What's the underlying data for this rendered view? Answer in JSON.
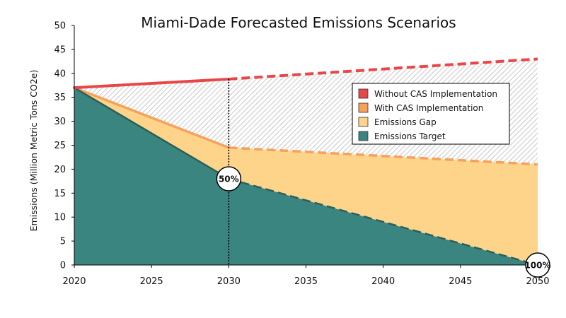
{
  "chart_data": {
    "type": "area",
    "title": "Miami-Dade Forecasted Emissions Scenarios",
    "xlabel": "",
    "ylabel": "Emissions (Million Metric Tons CO2e)",
    "xlim": [
      2020,
      2050
    ],
    "ylim": [
      0,
      50
    ],
    "x_ticks": [
      "2020",
      "2025",
      "2030",
      "2035",
      "2040",
      "2045",
      "2050"
    ],
    "y_ticks": [
      "0",
      "5",
      "10",
      "15",
      "20",
      "25",
      "30",
      "35",
      "40",
      "45",
      "50"
    ],
    "grid": false,
    "legend_position": "top-right",
    "series": [
      {
        "name": "Without CAS Implementation",
        "color": "#e8474a",
        "points": [
          [
            2020,
            37
          ],
          [
            2030,
            38.8
          ],
          [
            2050,
            43
          ]
        ],
        "solid_until": 2030
      },
      {
        "name": "With CAS Implementation",
        "color": "#f7a15a",
        "points": [
          [
            2020,
            37
          ],
          [
            2030,
            24.5
          ],
          [
            2050,
            21
          ]
        ],
        "solid_until": 2030
      },
      {
        "name": "Emissions Gap",
        "color": "#fdd48a",
        "fill": true
      },
      {
        "name": "Emissions Target",
        "color": "#3a8580",
        "points": [
          [
            2020,
            37
          ],
          [
            2030,
            18
          ],
          [
            2050,
            0
          ]
        ],
        "solid_until": 2030
      }
    ],
    "annotations": [
      {
        "text": "50%",
        "x": 2030,
        "y": 18
      },
      {
        "text": "100%",
        "x": 2050,
        "y": 0
      }
    ],
    "marker_line_x": 2030
  }
}
